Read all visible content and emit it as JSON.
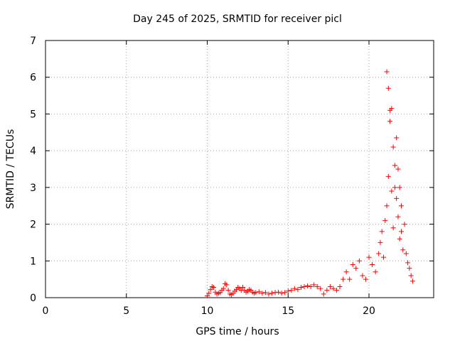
{
  "chart_data": {
    "type": "scatter",
    "title": "Day 245 of 2025, SRMTID for receiver picl",
    "xlabel": "GPS time / hours",
    "ylabel": "SRMTID / TECUs",
    "xlim": [
      0,
      24
    ],
    "ylim": [
      0,
      7
    ],
    "xticks": [
      "0",
      "5",
      "10",
      "15",
      "20"
    ],
    "yticks": [
      "0",
      "1",
      "2",
      "3",
      "4",
      "5",
      "6",
      "7"
    ],
    "grid": true,
    "marker": "plus",
    "color": "#ff0000",
    "series": [
      {
        "x": [
          10.0,
          10.1,
          10.2,
          10.3,
          10.4,
          10.5,
          10.6,
          10.7,
          10.8,
          10.9,
          11.0,
          11.1,
          11.2,
          11.3,
          11.4,
          11.5,
          11.6,
          11.7,
          11.8,
          11.9,
          12.0,
          12.1,
          12.2,
          12.3,
          12.4,
          12.5,
          12.6,
          12.7,
          12.8,
          12.9,
          13.0,
          13.2,
          13.4,
          13.6,
          13.8,
          14.0,
          14.2,
          14.4,
          14.6,
          14.8,
          15.0,
          15.2,
          15.4,
          15.6,
          15.8,
          16.0,
          16.2,
          16.4,
          16.6,
          16.8,
          17.0,
          17.2,
          17.4,
          17.6,
          17.8,
          18.0,
          18.2,
          18.4,
          18.6,
          18.8,
          19.0,
          19.2,
          19.4,
          19.6,
          19.8,
          20.0,
          20.2,
          20.4,
          20.6,
          20.7,
          20.8,
          20.9,
          21.0,
          21.1,
          21.1,
          21.2,
          21.2,
          21.3,
          21.3,
          21.4,
          21.4,
          21.5,
          21.5,
          21.6,
          21.6,
          21.7,
          21.7,
          21.8,
          21.8,
          21.9,
          21.9,
          22.0,
          22.0,
          22.1,
          22.2,
          22.3,
          22.4,
          22.5,
          22.6,
          22.7
        ],
        "y": [
          0.05,
          0.12,
          0.22,
          0.3,
          0.28,
          0.15,
          0.1,
          0.12,
          0.14,
          0.2,
          0.25,
          0.38,
          0.35,
          0.2,
          0.1,
          0.08,
          0.12,
          0.18,
          0.22,
          0.28,
          0.25,
          0.2,
          0.28,
          0.2,
          0.15,
          0.18,
          0.22,
          0.2,
          0.15,
          0.12,
          0.14,
          0.16,
          0.12,
          0.14,
          0.1,
          0.12,
          0.14,
          0.15,
          0.12,
          0.14,
          0.18,
          0.2,
          0.25,
          0.22,
          0.28,
          0.3,
          0.32,
          0.3,
          0.35,
          0.3,
          0.25,
          0.1,
          0.2,
          0.3,
          0.25,
          0.2,
          0.3,
          0.5,
          0.7,
          0.5,
          0.9,
          0.8,
          1.0,
          0.6,
          0.5,
          1.1,
          0.9,
          0.7,
          1.2,
          1.5,
          1.8,
          1.1,
          2.1,
          2.5,
          6.15,
          3.3,
          5.7,
          4.8,
          5.1,
          2.9,
          5.15,
          1.9,
          4.1,
          3.6,
          3.0,
          2.7,
          4.35,
          3.5,
          2.2,
          3.0,
          1.6,
          2.5,
          1.8,
          1.3,
          2.0,
          1.2,
          0.95,
          0.8,
          0.6,
          0.45
        ]
      }
    ]
  }
}
